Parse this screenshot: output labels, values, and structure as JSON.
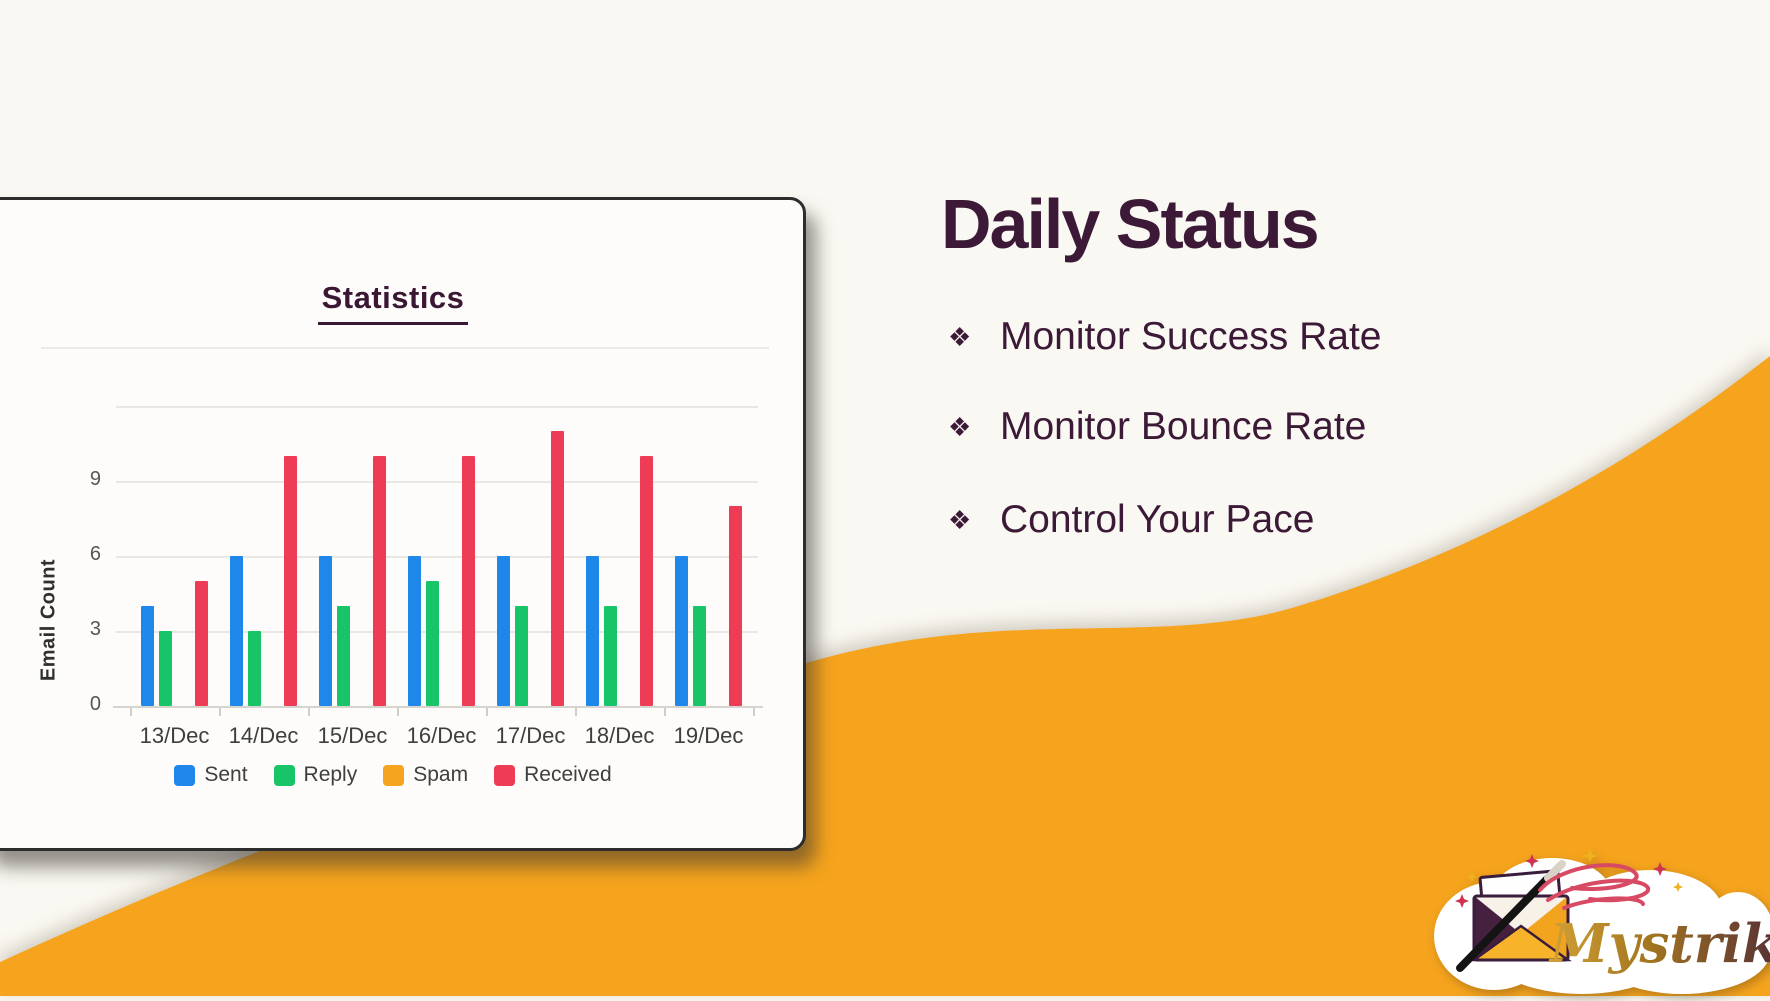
{
  "page": {
    "background": "#faf8f2"
  },
  "wave": {
    "color": "#f6a41d"
  },
  "chart_card": {
    "title": "Statistics",
    "title_color": "#3a1733",
    "border_color": "#2e2d2d"
  },
  "chart_data": {
    "type": "bar",
    "title": "Statistics",
    "categories": [
      "13/Dec",
      "14/Dec",
      "15/Dec",
      "16/Dec",
      "17/Dec",
      "18/Dec",
      "19/Dec"
    ],
    "series": [
      {
        "name": "Sent",
        "color": "#1e87e9",
        "values": [
          4,
          6,
          6,
          6,
          6,
          6,
          6
        ]
      },
      {
        "name": "Reply",
        "color": "#17c468",
        "values": [
          3,
          3,
          4,
          5,
          4,
          4,
          4
        ]
      },
      {
        "name": "Spam",
        "color": "#f4a41f",
        "values": [
          0,
          0,
          0,
          0,
          0,
          0,
          0
        ]
      },
      {
        "name": "Received",
        "color": "#ee3c56",
        "values": [
          5,
          10,
          10,
          10,
          11,
          10,
          8
        ]
      }
    ],
    "xlabel": "",
    "ylabel": "Email Count",
    "ylim": [
      0,
      12
    ],
    "yticks": [
      0,
      3,
      6,
      9
    ],
    "grid": true,
    "legend_position": "bottom"
  },
  "right_panel": {
    "heading": "Daily Status",
    "bullet_glyph": "❖",
    "items": [
      "Monitor Success Rate",
      "Monitor Bounce Rate",
      "Control Your Pace"
    ],
    "text_color": "#3c1a37"
  },
  "logo": {
    "brand": "Mystrika"
  }
}
